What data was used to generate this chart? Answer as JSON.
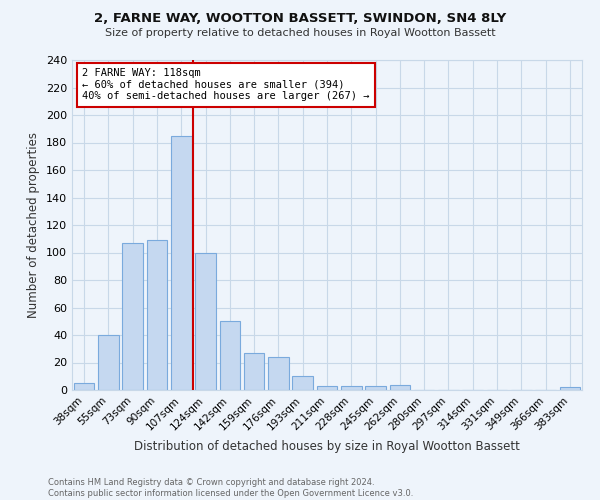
{
  "title": "2, FARNE WAY, WOOTTON BASSETT, SWINDON, SN4 8LY",
  "subtitle": "Size of property relative to detached houses in Royal Wootton Bassett",
  "xlabel": "Distribution of detached houses by size in Royal Wootton Bassett",
  "ylabel": "Number of detached properties",
  "footer_line1": "Contains HM Land Registry data © Crown copyright and database right 2024.",
  "footer_line2": "Contains public sector information licensed under the Open Government Licence v3.0.",
  "bar_labels": [
    "38sqm",
    "55sqm",
    "73sqm",
    "90sqm",
    "107sqm",
    "124sqm",
    "142sqm",
    "159sqm",
    "176sqm",
    "193sqm",
    "211sqm",
    "228sqm",
    "245sqm",
    "262sqm",
    "280sqm",
    "297sqm",
    "314sqm",
    "331sqm",
    "349sqm",
    "366sqm",
    "383sqm"
  ],
  "bar_values": [
    5,
    40,
    107,
    109,
    185,
    100,
    50,
    27,
    24,
    10,
    3,
    3,
    3,
    4,
    0,
    0,
    0,
    0,
    0,
    0,
    2
  ],
  "bar_color": "#c5d8f0",
  "bar_edge_color": "#7aaadd",
  "grid_color": "#c8d8e8",
  "background_color": "#eef4fb",
  "vline_color": "#cc0000",
  "vline_label": "2 FARNE WAY: 118sqm",
  "annotation_line2": "← 60% of detached houses are smaller (394)",
  "annotation_line3": "40% of semi-detached houses are larger (267) →",
  "annotation_box_color": "#ffffff",
  "annotation_box_edge": "#cc0000",
  "ylim": [
    0,
    240
  ],
  "yticks": [
    0,
    20,
    40,
    60,
    80,
    100,
    120,
    140,
    160,
    180,
    200,
    220,
    240
  ]
}
